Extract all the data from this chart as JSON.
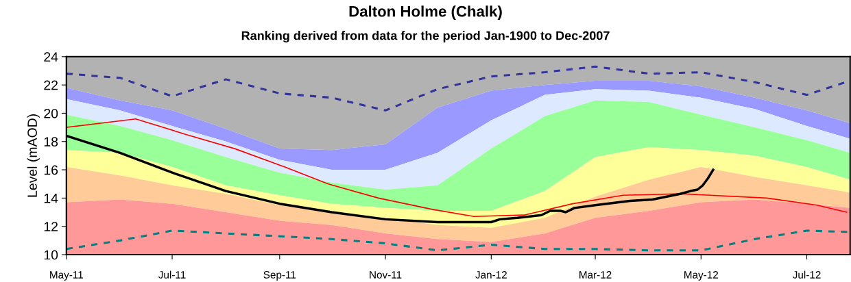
{
  "chart_data": {
    "type": "area",
    "title": "Dalton Holme (Chalk)",
    "subtitle": "Ranking derived from data for the period Jan-1900 to Dec-2007",
    "ylabel": "Level (mAOD)",
    "x": [
      "2011-05-01",
      "2011-06-01",
      "2011-07-01",
      "2011-08-01",
      "2011-09-01",
      "2011-10-01",
      "2011-11-01",
      "2011-12-01",
      "2012-01-01",
      "2012-02-01",
      "2012-03-01",
      "2012-04-01",
      "2012-05-01",
      "2012-06-01",
      "2012-07-01",
      "2012-07-26"
    ],
    "xlim": [
      "2011-05-01",
      "2012-07-26"
    ],
    "xticks": [
      {
        "value": "2011-05-01",
        "label": "May-11"
      },
      {
        "value": "2011-07-01",
        "label": "Jul-11"
      },
      {
        "value": "2011-09-01",
        "label": "Sep-11"
      },
      {
        "value": "2011-11-01",
        "label": "Nov-11"
      },
      {
        "value": "2012-01-01",
        "label": "Jan-12"
      },
      {
        "value": "2012-03-01",
        "label": "Mar-12"
      },
      {
        "value": "2012-05-01",
        "label": "May-12"
      },
      {
        "value": "2012-07-01",
        "label": "Jul-12"
      }
    ],
    "ylim": [
      10,
      24
    ],
    "yticks": [
      10,
      12,
      14,
      16,
      18,
      20,
      22,
      24
    ],
    "grid": false,
    "series": [
      {
        "color": "#b2b2b2",
        "values": [
          24,
          24,
          24,
          24,
          24,
          24,
          24,
          24,
          24,
          24,
          24,
          24,
          24,
          24,
          24,
          24
        ]
      },
      {
        "color": "#9999ff",
        "values": [
          21.8,
          20.9,
          20.2,
          18.9,
          17.5,
          17.4,
          17.8,
          20.4,
          21.6,
          22.0,
          22.3,
          22.3,
          21.9,
          21.1,
          20.2,
          19.3
        ]
      },
      {
        "color": "#dde9ff",
        "values": [
          21.0,
          20.2,
          19.1,
          18.0,
          16.7,
          16.0,
          16.0,
          17.2,
          19.5,
          21.3,
          21.7,
          21.6,
          21.1,
          20.3,
          19.1,
          18.2
        ]
      },
      {
        "color": "#99ff99",
        "values": [
          19.9,
          19.1,
          18.1,
          16.9,
          15.8,
          15.1,
          14.6,
          14.9,
          17.5,
          19.8,
          20.9,
          20.8,
          19.9,
          19.0,
          18.1,
          17.2
        ]
      },
      {
        "color": "#ffff99",
        "values": [
          17.4,
          17.2,
          16.2,
          14.9,
          14.2,
          13.6,
          13.3,
          13.1,
          13.1,
          14.5,
          16.9,
          17.6,
          17.4,
          17.0,
          16.2,
          15.3
        ]
      },
      {
        "color": "#ffcc99",
        "values": [
          16.2,
          15.6,
          14.9,
          14.3,
          13.5,
          13.0,
          12.6,
          12.1,
          11.9,
          12.6,
          14.1,
          15.3,
          16.2,
          15.5,
          14.9,
          14.4
        ]
      },
      {
        "color": "#ff9999",
        "values": [
          13.7,
          13.9,
          13.6,
          13.0,
          12.4,
          12.1,
          11.5,
          11.1,
          10.9,
          11.5,
          12.6,
          13.1,
          13.7,
          13.9,
          13.6,
          13.3
        ]
      },
      {
        "type": "line",
        "color": "#333399",
        "line_style": "dashed",
        "values": [
          22.8,
          22.5,
          21.2,
          22.4,
          21.4,
          21.1,
          20.2,
          21.7,
          22.6,
          22.9,
          23.3,
          22.8,
          22.9,
          22.2,
          21.3,
          22.3
        ]
      },
      {
        "type": "line",
        "color": "#008080",
        "line_style": "dashed",
        "values": [
          10.4,
          11.0,
          11.7,
          11.5,
          11.3,
          11.1,
          10.8,
          10.3,
          10.7,
          10.4,
          10.4,
          10.3,
          10.3,
          11.1,
          11.7,
          11.6
        ]
      },
      {
        "type": "line",
        "color": "#ff0000",
        "line_style": "solid",
        "x": [
          "2011-05-01",
          "2011-06-10",
          "2011-07-09",
          "2011-08-06",
          "2011-09-04",
          "2011-09-29",
          "2011-10-28",
          "2011-11-28",
          "2011-12-22",
          "2012-01-20",
          "2012-02-17",
          "2012-03-17",
          "2012-04-20",
          "2012-06-08",
          "2012-07-07",
          "2012-07-24"
        ],
        "values": [
          19.0,
          19.6,
          18.5,
          17.5,
          16.2,
          15.0,
          14.0,
          13.2,
          12.7,
          12.8,
          13.6,
          14.2,
          14.3,
          14.0,
          13.5,
          13.0
        ]
      },
      {
        "type": "line",
        "color": "#000000",
        "line_style": "solid",
        "x": [
          "2011-05-01",
          "2011-06-01",
          "2011-07-01",
          "2011-08-01",
          "2011-09-01",
          "2011-10-01",
          "2011-11-01",
          "2011-12-01",
          "2012-01-01",
          "2012-01-06",
          "2012-01-16",
          "2012-01-30",
          "2012-02-04",
          "2012-02-10",
          "2012-02-13",
          "2012-02-18",
          "2012-03-01",
          "2012-03-21",
          "2012-04-03",
          "2012-04-19",
          "2012-04-25",
          "2012-04-29",
          "2012-05-02",
          "2012-05-05",
          "2012-05-08"
        ],
        "values": [
          18.4,
          17.2,
          15.8,
          14.5,
          13.6,
          13.0,
          12.5,
          12.3,
          12.3,
          12.5,
          12.6,
          12.8,
          13.1,
          13.1,
          13.0,
          13.3,
          13.5,
          13.8,
          13.9,
          14.3,
          14.5,
          14.6,
          14.9,
          15.4,
          16.0
        ]
      }
    ]
  }
}
